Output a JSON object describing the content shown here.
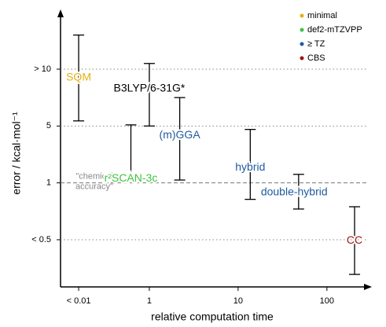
{
  "chart_data": {
    "type": "errorbar",
    "xlabel": "relative computation time",
    "ylabel": "error / kcal·mol⁻¹",
    "xscale": "log",
    "xlim": [
      0.1,
      370
    ],
    "xticks": [
      {
        "value": 0.16,
        "label": "< 0.01"
      },
      1,
      10,
      100
    ],
    "ylim": [
      -0.83,
      3.94
    ],
    "yticks": [
      {
        "value": 0,
        "label": "< 0.5"
      },
      1,
      {
        "value": 2,
        "label": "5"
      },
      {
        "value": 3,
        "label": "> 10"
      }
    ],
    "grid": true,
    "legend_position": "upper right",
    "legend": [
      {
        "name": "minimal",
        "color": "#e6b012"
      },
      {
        "name": "def2-mTZVPP",
        "color": "#3ec43e"
      },
      {
        "name": "≥ TZ",
        "color": "#1f5a9e"
      },
      {
        "name": "CBS",
        "color": "#9c1414"
      }
    ],
    "reference": {
      "value": 1,
      "label": [
        "\"chemical",
        "accuracy\""
      ]
    },
    "points": [
      {
        "label": "SQM",
        "group": 0,
        "x": 0.16,
        "low": 2.09,
        "high": 3.6
      },
      {
        "label": "B3LYP/6-31G*",
        "x": 1,
        "low": 2.0,
        "high": 3.1
      },
      {
        "label": "r²SCAN-3c",
        "group": 1,
        "x": 0.62,
        "low": 1.12,
        "high": 2.02
      },
      {
        "label": "(m)GGA",
        "group": 2,
        "x": 2.2,
        "low": 1.05,
        "high": 2.5
      },
      {
        "label": "hybrid",
        "group": 2,
        "x": 13.7,
        "low": 0.71,
        "high": 1.94
      },
      {
        "label": "double-hybrid",
        "group": 2,
        "x": 48,
        "low": 0.54,
        "high": 1.15
      },
      {
        "label": "CC",
        "group": 3,
        "x": 205,
        "low": -0.61,
        "high": 0.58
      }
    ]
  }
}
